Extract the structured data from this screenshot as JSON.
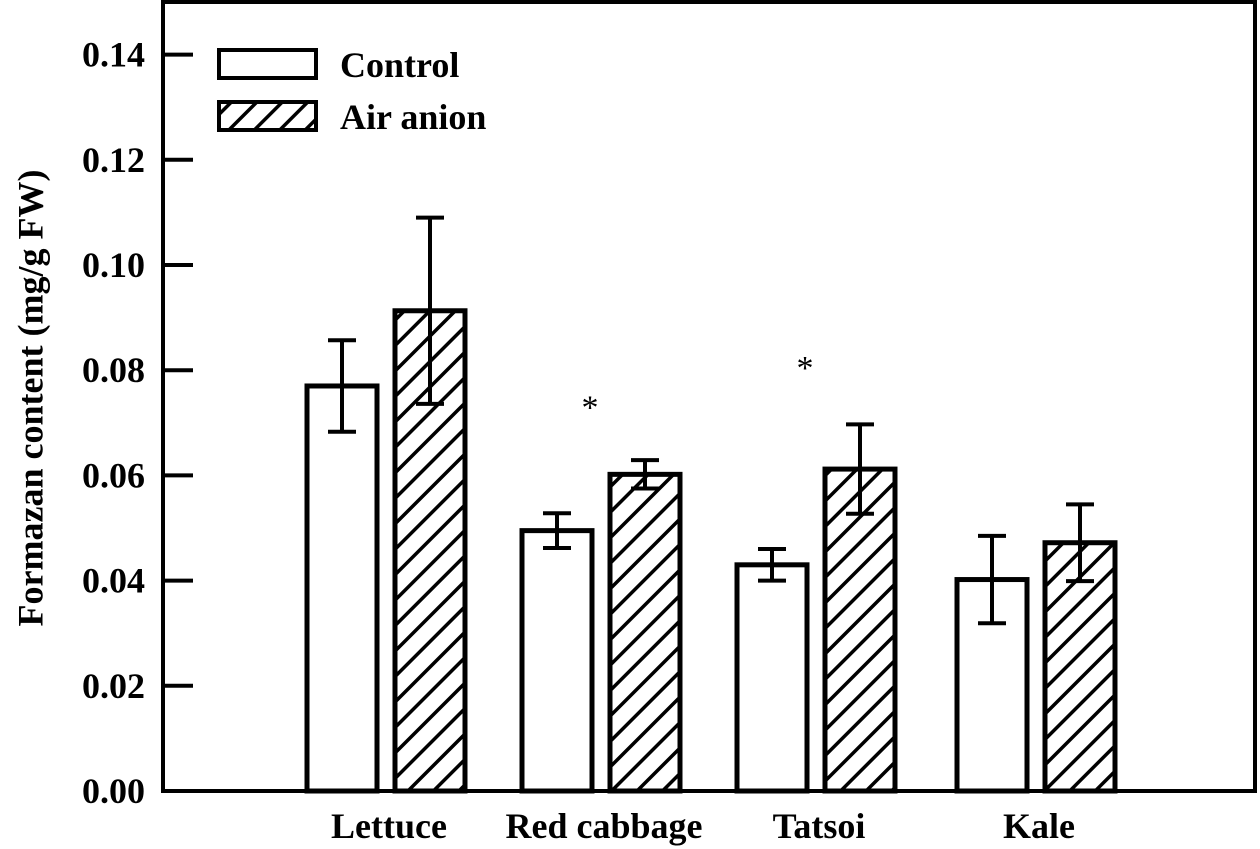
{
  "chart_data": {
    "type": "bar",
    "categories": [
      "Lettuce",
      "Red cabbage",
      "Tatsoi",
      "Kale"
    ],
    "series": [
      {
        "name": "Control",
        "values": [
          0.077,
          0.0495,
          0.043,
          0.0402
        ],
        "errors": [
          0.0087,
          0.0033,
          0.003,
          0.0083
        ],
        "pattern": "none"
      },
      {
        "name": "Air anion",
        "values": [
          0.0913,
          0.0602,
          0.0612,
          0.0472
        ],
        "errors": [
          0.0177,
          0.0027,
          0.0085,
          0.0073
        ],
        "pattern": "hatch"
      }
    ],
    "annotations": [
      {
        "category": "Red cabbage",
        "text": "*",
        "y": 0.075
      },
      {
        "category": "Tatsoi",
        "text": "*",
        "y": 0.0825
      }
    ],
    "title": "",
    "xlabel": "",
    "ylabel": "Formazan content (mg/g FW)",
    "ylim": [
      0,
      0.15
    ],
    "yticks": [
      "0.00",
      "0.02",
      "0.04",
      "0.06",
      "0.08",
      "0.10",
      "0.12",
      "0.14"
    ],
    "legend_position": "top-left",
    "grid": false,
    "colors": {
      "bar_fill": "#ffffff",
      "stroke": "#000000"
    }
  }
}
